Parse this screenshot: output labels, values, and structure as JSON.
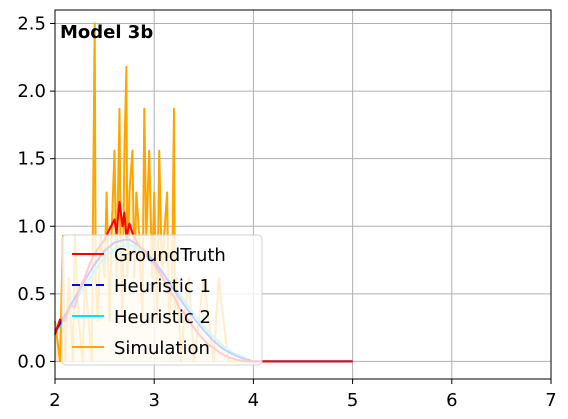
{
  "chart_data": {
    "type": "line",
    "title": "Model 3b",
    "xlabel": "",
    "ylabel": "",
    "xlim": [
      2,
      7
    ],
    "ylim": [
      -0.13,
      2.6
    ],
    "x_ticks": [
      2,
      3,
      4,
      5,
      6,
      7
    ],
    "y_ticks": [
      0.0,
      0.5,
      1.0,
      1.5,
      2.0,
      2.5
    ],
    "x_tick_labels": [
      "2",
      "3",
      "4",
      "5",
      "6",
      "7"
    ],
    "y_tick_labels": [
      "0.0",
      "0.5",
      "1.0",
      "1.5",
      "2.0",
      "2.5"
    ],
    "grid": true,
    "legend_position": "lower-left",
    "series": [
      {
        "name": "GroundTruth",
        "color": "#ff0000",
        "x": [
          2.0,
          2.05,
          2.1,
          2.15,
          2.2,
          2.25,
          2.3,
          2.35,
          2.4,
          2.45,
          2.5,
          2.55,
          2.6,
          2.62,
          2.65,
          2.68,
          2.7,
          2.72,
          2.75,
          2.78,
          2.8,
          2.85,
          2.9,
          2.95,
          3.0,
          3.05,
          3.1,
          3.15,
          3.2,
          3.25,
          3.3,
          3.35,
          3.4,
          3.45,
          3.5,
          3.55,
          3.6,
          3.65,
          3.7,
          3.75,
          3.8,
          3.85,
          3.9,
          3.95,
          4.0,
          4.5,
          5.0
        ],
        "y": [
          0.2,
          0.31,
          0.3,
          0.42,
          0.4,
          0.55,
          0.62,
          0.72,
          0.8,
          0.85,
          0.9,
          0.98,
          1.05,
          0.95,
          1.18,
          1.0,
          1.1,
          0.92,
          1.02,
          0.95,
          0.92,
          0.85,
          0.82,
          0.75,
          0.72,
          0.66,
          0.6,
          0.52,
          0.48,
          0.4,
          0.36,
          0.3,
          0.25,
          0.2,
          0.16,
          0.12,
          0.1,
          0.07,
          0.05,
          0.03,
          0.02,
          0.01,
          0.005,
          0.0,
          0.0,
          0.0,
          0.0
        ]
      },
      {
        "name": "Heuristic 1",
        "color": "#0000ff",
        "x": [
          2.0,
          2.1,
          2.2,
          2.3,
          2.4,
          2.5,
          2.6,
          2.7,
          2.75,
          2.8,
          2.9,
          3.0,
          3.1,
          3.2,
          3.3,
          3.4,
          3.5,
          3.6,
          3.7,
          3.8,
          3.9,
          4.0,
          4.5,
          5.0
        ],
        "y": [
          0.22,
          0.34,
          0.47,
          0.6,
          0.72,
          0.82,
          0.88,
          0.9,
          0.9,
          0.88,
          0.82,
          0.74,
          0.64,
          0.53,
          0.42,
          0.32,
          0.23,
          0.15,
          0.09,
          0.05,
          0.02,
          0.0,
          0.0,
          0.0
        ]
      },
      {
        "name": "Heuristic 2",
        "color": "#00e5ff",
        "x": [
          2.0,
          2.1,
          2.2,
          2.3,
          2.4,
          2.5,
          2.6,
          2.7,
          2.75,
          2.8,
          2.9,
          3.0,
          3.1,
          3.2,
          3.3,
          3.4,
          3.5,
          3.6,
          3.7,
          3.8,
          3.9,
          4.0,
          4.5,
          5.0
        ],
        "y": [
          0.21,
          0.32,
          0.44,
          0.56,
          0.67,
          0.77,
          0.83,
          0.86,
          0.86,
          0.85,
          0.8,
          0.73,
          0.64,
          0.55,
          0.45,
          0.35,
          0.26,
          0.18,
          0.11,
          0.06,
          0.03,
          0.0,
          0.0,
          0.0
        ]
      },
      {
        "name": "Simulation",
        "color": "#ffa500",
        "x": [
          2.0,
          2.05,
          2.08,
          2.1,
          2.14,
          2.18,
          2.2,
          2.24,
          2.28,
          2.3,
          2.34,
          2.37,
          2.4,
          2.41,
          2.43,
          2.46,
          2.5,
          2.52,
          2.55,
          2.57,
          2.6,
          2.62,
          2.65,
          2.66,
          2.68,
          2.7,
          2.72,
          2.73,
          2.75,
          2.78,
          2.8,
          2.82,
          2.85,
          2.88,
          2.9,
          2.92,
          2.95,
          2.98,
          3.0,
          3.03,
          3.05,
          3.08,
          3.1,
          3.13,
          3.15,
          3.18,
          3.2,
          3.21,
          3.23,
          3.27,
          3.3,
          3.35,
          3.4,
          3.45,
          3.5,
          3.55,
          3.6,
          3.65,
          3.7,
          3.75,
          3.8,
          3.85,
          3.9,
          4.0,
          4.5,
          5.0
        ],
        "y": [
          0.3,
          0.0,
          0.93,
          0.0,
          0.62,
          0.0,
          0.93,
          0.3,
          0.0,
          0.62,
          0.3,
          0.0,
          2.5,
          0.62,
          0.3,
          0.93,
          0.62,
          1.25,
          0.3,
          0.93,
          1.56,
          0.62,
          1.87,
          0.93,
          0.3,
          1.56,
          2.18,
          0.62,
          1.25,
          1.56,
          0.62,
          1.25,
          0.93,
          0.3,
          1.87,
          0.93,
          1.56,
          0.62,
          1.25,
          0.3,
          1.56,
          0.62,
          0.93,
          1.25,
          0.3,
          0.62,
          1.87,
          0.3,
          0.62,
          0.0,
          0.3,
          0.62,
          0.0,
          0.3,
          0.62,
          0.3,
          0.0,
          0.62,
          0.3,
          0.0,
          0.0,
          0.0,
          0.0,
          0.0,
          0.0,
          0.0
        ]
      }
    ]
  },
  "legend": {
    "items": [
      {
        "label": "GroundTruth",
        "color": "#ff0000",
        "style": "solid"
      },
      {
        "label": "Heuristic 1",
        "color": "#0000ff",
        "style": "dashed"
      },
      {
        "label": "Heuristic 2",
        "color": "#00e5ff",
        "style": "solid"
      },
      {
        "label": "Simulation",
        "color": "#ffa500",
        "style": "solid"
      }
    ]
  }
}
